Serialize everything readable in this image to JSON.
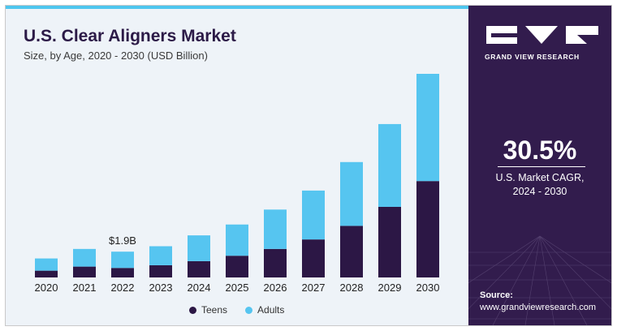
{
  "header": {
    "title": "U.S. Clear Aligners Market",
    "subtitle": "Size, by Age, 2020 - 2030 (USD Billion)"
  },
  "colors": {
    "teens": "#2c1745",
    "adults": "#56c5f0",
    "panel": "#321c4d",
    "accent_line": "#4fc6ee"
  },
  "chart_data": {
    "type": "bar",
    "stacked": true,
    "categories": [
      "2020",
      "2021",
      "2022",
      "2023",
      "2024",
      "2025",
      "2026",
      "2027",
      "2028",
      "2029",
      "2030"
    ],
    "series": [
      {
        "name": "Teens",
        "values": [
          0.5,
          0.8,
          0.7,
          0.9,
          1.2,
          1.6,
          2.1,
          2.8,
          3.8,
          5.2,
          7.1
        ]
      },
      {
        "name": "Adults",
        "values": [
          0.9,
          1.3,
          1.2,
          1.4,
          1.9,
          2.3,
          2.9,
          3.6,
          4.7,
          6.1,
          7.9
        ]
      }
    ],
    "annotations": [
      {
        "category": "2022",
        "text": "$1.9B"
      }
    ],
    "legend_position": "bottom",
    "grid": false
  },
  "legend": {
    "items": [
      "Teens",
      "Adults"
    ]
  },
  "side_panel": {
    "brand": "GRAND VIEW RESEARCH",
    "cagr_value": "30.5%",
    "cagr_label_line1": "U.S. Market CAGR,",
    "cagr_label_line2": "2024 - 2030",
    "source_label": "Source:",
    "source_url": "www.grandviewresearch.com"
  }
}
